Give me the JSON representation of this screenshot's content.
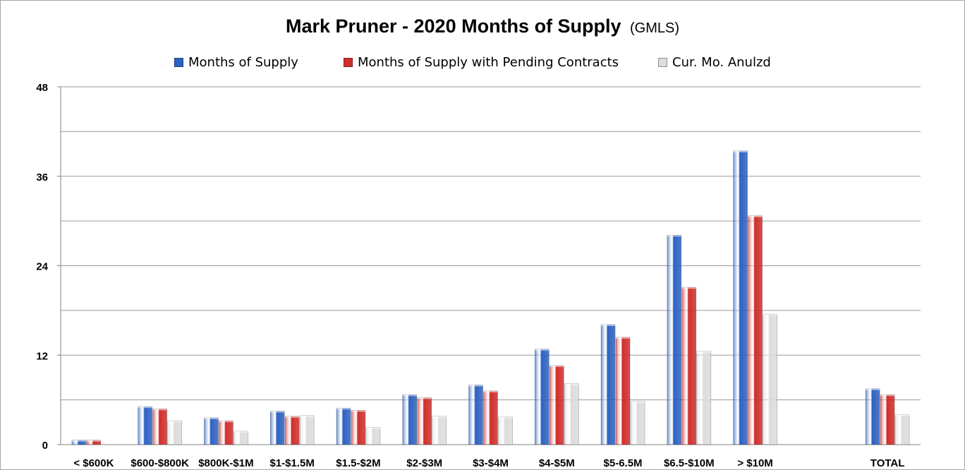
{
  "chart_data": {
    "type": "bar",
    "title": "Mark Pruner -  2020 Months of Supply",
    "subtitle": "(GMLS)",
    "xlabel": "",
    "ylabel": "",
    "ylim": [
      0,
      48
    ],
    "yticks": [
      0,
      12,
      24,
      36,
      48
    ],
    "grid": true,
    "legend_position": "top",
    "categories": [
      "< $600K",
      "$600-$800K",
      "$800K-$1M",
      "$1-$1.5M",
      "$1.5-$2M",
      "$2-$3M",
      "$3-$4M",
      "$4-$5M",
      "$5-6.5M",
      "$6.5-$10M",
      "> $10M",
      "",
      "TOTAL"
    ],
    "series": [
      {
        "name": "Months of Supply",
        "color": "#2e62c2",
        "values": [
          0.6,
          5.1,
          3.6,
          4.5,
          4.9,
          6.7,
          8.0,
          12.8,
          16.1,
          28.1,
          39.4,
          null,
          7.5
        ]
      },
      {
        "name": "Months of Supply with Pending Contracts",
        "color": "#cf2f2c",
        "values": [
          0.6,
          4.8,
          3.2,
          3.8,
          4.6,
          6.3,
          7.2,
          10.6,
          14.4,
          21.1,
          30.7,
          null,
          6.7
        ]
      },
      {
        "name": "Cur. Mo. Anulzd",
        "color": "#dcdcdc",
        "values": [
          0.0,
          3.2,
          1.8,
          3.9,
          2.3,
          3.8,
          3.7,
          8.2,
          5.8,
          12.5,
          17.5,
          null,
          4.0
        ]
      }
    ]
  }
}
